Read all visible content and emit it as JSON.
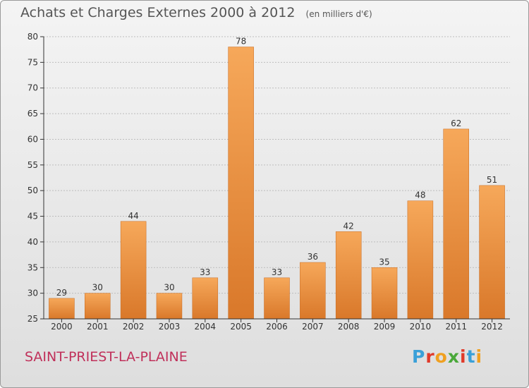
{
  "header": {
    "title": "Achats et Charges Externes 2000 à 2012",
    "unit": "(en milliers d'€)"
  },
  "footer": {
    "town": "SAINT-PRIEST-LA-PLAINE",
    "brand": {
      "text": "Proxiti",
      "letter_colors": [
        "#3aa0d8",
        "#e03a2a",
        "#f0a020",
        "#4aa83a",
        "#e03a2a",
        "#3aa0d8",
        "#f0a020"
      ]
    }
  },
  "colors": {
    "bar_light": "#f6a85a",
    "bar_dark": "#d9782a",
    "axis": "#333333",
    "grid": "#bdbdbd",
    "title": "#555555",
    "town": "#c0305a"
  },
  "chart_data": {
    "type": "bar",
    "title": "Achats et Charges Externes 2000 à 2012",
    "subtitle": "(en milliers d'€)",
    "xlabel": "",
    "ylabel": "",
    "categories": [
      "2000",
      "2001",
      "2002",
      "2003",
      "2004",
      "2005",
      "2006",
      "2007",
      "2008",
      "2009",
      "2010",
      "2011",
      "2012"
    ],
    "values": [
      29,
      30,
      44,
      30,
      33,
      78,
      33,
      36,
      42,
      35,
      48,
      62,
      51
    ],
    "ylim": [
      25,
      80
    ],
    "yticks": [
      25,
      30,
      35,
      40,
      45,
      50,
      55,
      60,
      65,
      70,
      75,
      80
    ],
    "grid": true,
    "legend": "none"
  }
}
